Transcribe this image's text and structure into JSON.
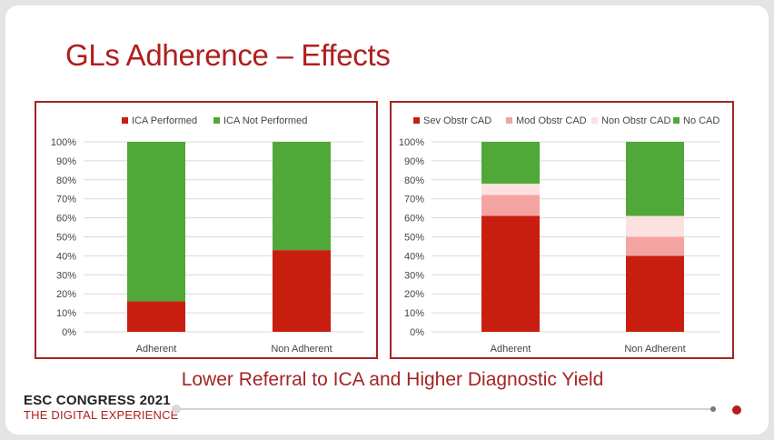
{
  "slide": {
    "title": "GLs Adherence – Effects",
    "subtitle": "Lower Referral to ICA and Higher Diagnostic Yield",
    "brand_line1": "ESC CONGRESS 2021",
    "brand_line2": "THE DIGITAL EXPERIENCE"
  },
  "colors": {
    "title": "#b01e1e",
    "panel_border": "#a42424",
    "ica_performed": "#c81e10",
    "ica_not_performed": "#4fa838",
    "sev_obstr_cad": "#c81e10",
    "mod_obstr_cad": "#f4a4a0",
    "non_obstr_cad": "#fbe1e0",
    "no_cad": "#4fa838"
  },
  "chart_data": [
    {
      "type": "bar",
      "stacked": true,
      "categories": [
        "Adherent",
        "Non Adherent"
      ],
      "series": [
        {
          "name": "ICA Performed",
          "values": [
            16,
            43
          ]
        },
        {
          "name": "ICA Not Performed",
          "values": [
            84,
            57
          ]
        }
      ],
      "yticks": [
        "0%",
        "10%",
        "20%",
        "30%",
        "40%",
        "50%",
        "60%",
        "70%",
        "80%",
        "90%",
        "100%"
      ],
      "ylim": [
        0,
        100
      ],
      "grid": true,
      "legend": "top"
    },
    {
      "type": "bar",
      "stacked": true,
      "categories": [
        "Adherent",
        "Non Adherent"
      ],
      "series": [
        {
          "name": "Sev Obstr CAD",
          "values": [
            61,
            40
          ]
        },
        {
          "name": "Mod Obstr CAD",
          "values": [
            11,
            10
          ]
        },
        {
          "name": "Non Obstr CAD",
          "values": [
            6,
            11
          ]
        },
        {
          "name": "No CAD",
          "values": [
            22,
            39
          ]
        }
      ],
      "yticks": [
        "0%",
        "10%",
        "20%",
        "30%",
        "40%",
        "50%",
        "60%",
        "70%",
        "80%",
        "90%",
        "100%"
      ],
      "ylim": [
        0,
        100
      ],
      "grid": true,
      "legend": "top"
    }
  ]
}
